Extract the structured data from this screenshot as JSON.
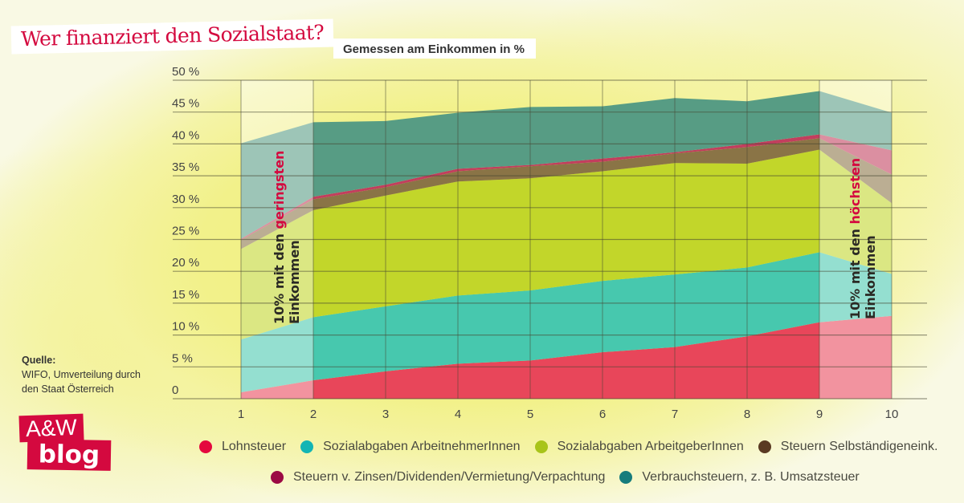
{
  "header": {
    "title": "Wer finanziert den Sozialstaat?",
    "subtitle": "Gemessen am Einkommen in %"
  },
  "source": {
    "label": "Quelle:",
    "line1": "WIFO, Umverteilung durch",
    "line2": "den Staat Österreich"
  },
  "logo": {
    "line1": "A&W",
    "line2": "blog"
  },
  "annotations": {
    "low": {
      "prefix": "10% mit den ",
      "highlight": "geringsten",
      "line2": "Einkommen"
    },
    "high": {
      "prefix": "10% mit den ",
      "highlight": "höchsten",
      "line2": "Einkommen"
    }
  },
  "chart_data": {
    "type": "area",
    "stacked": true,
    "title": "Wer finanziert den Sozialstaat?",
    "subtitle": "Gemessen am Einkommen in %",
    "xlabel": "",
    "ylabel": "",
    "x": [
      1,
      2,
      3,
      4,
      5,
      6,
      7,
      8,
      9,
      10
    ],
    "x_tick_labels": [
      "1",
      "2",
      "3",
      "4",
      "5",
      "6",
      "7",
      "8",
      "9",
      "10"
    ],
    "ylim": [
      0,
      50
    ],
    "y_ticks": [
      0,
      5,
      10,
      15,
      20,
      25,
      30,
      35,
      40,
      45,
      50
    ],
    "y_tick_labels": [
      "0",
      "5 %",
      "10 %",
      "15 %",
      "20 %",
      "25 %",
      "30 %",
      "35 %",
      "40 %",
      "45 %",
      "50 %"
    ],
    "grid": true,
    "legend_position": "bottom",
    "highlighted_x_ranges": [
      {
        "from": 1,
        "to": 2,
        "label": "10% mit den geringsten Einkommen"
      },
      {
        "from": 9,
        "to": 10,
        "label": "10% mit den höchsten Einkommen"
      }
    ],
    "series": [
      {
        "name": "Lohnsteuer",
        "color": "#e8465a",
        "values": [
          1.0,
          2.9,
          4.3,
          5.5,
          6.0,
          7.3,
          8.1,
          9.8,
          12.0,
          13.0
        ]
      },
      {
        "name": "Sozialabgaben ArbeitnehmerInnen",
        "color": "#47c8ae",
        "values": [
          8.3,
          9.9,
          10.2,
          10.7,
          11.0,
          11.2,
          11.4,
          10.8,
          11.0,
          6.6
        ]
      },
      {
        "name": "Sozialabgaben ArbeitgeberInnen",
        "color": "#c2d62a",
        "values": [
          14.2,
          16.8,
          17.4,
          17.9,
          17.6,
          17.2,
          17.5,
          16.3,
          16.1,
          11.1
        ]
      },
      {
        "name": "Steuern Selbständigeneink.",
        "color": "#8a7446",
        "values": [
          1.4,
          1.7,
          1.3,
          1.6,
          1.9,
          1.5,
          1.5,
          2.6,
          1.8,
          4.5
        ]
      },
      {
        "name": "Steuern v. Zinsen/Dividenden/Vermietung/Verpachtung",
        "color": "#c23e5e",
        "values": [
          0.2,
          0.4,
          0.4,
          0.4,
          0.2,
          0.5,
          0.2,
          0.5,
          0.6,
          3.8
        ]
      },
      {
        "name": "Verbrauchsteuern, z. B. Umsatzsteuer",
        "color": "#579c84",
        "values": [
          15.0,
          11.7,
          10.0,
          8.8,
          9.1,
          8.2,
          8.5,
          6.7,
          6.8,
          5.9
        ]
      }
    ]
  },
  "legend": {
    "items": [
      {
        "label": "Lohnsteuer",
        "color": "#e4083e"
      },
      {
        "label": "Sozialabgaben ArbeitnehmerInnen",
        "color": "#13b5b4"
      },
      {
        "label": "Sozialabgaben ArbeitgeberInnen",
        "color": "#a8c41a"
      },
      {
        "label": "Steuern Selbständigeneink.",
        "color": "#5a3a22"
      },
      {
        "label": "Steuern v. Zinsen/Dividenden/Vermietung/Verpachtung",
        "color": "#9b0a44"
      },
      {
        "label": "Verbrauchsteuern, z. B. Umsatzsteuer",
        "color": "#167c7c"
      }
    ]
  }
}
